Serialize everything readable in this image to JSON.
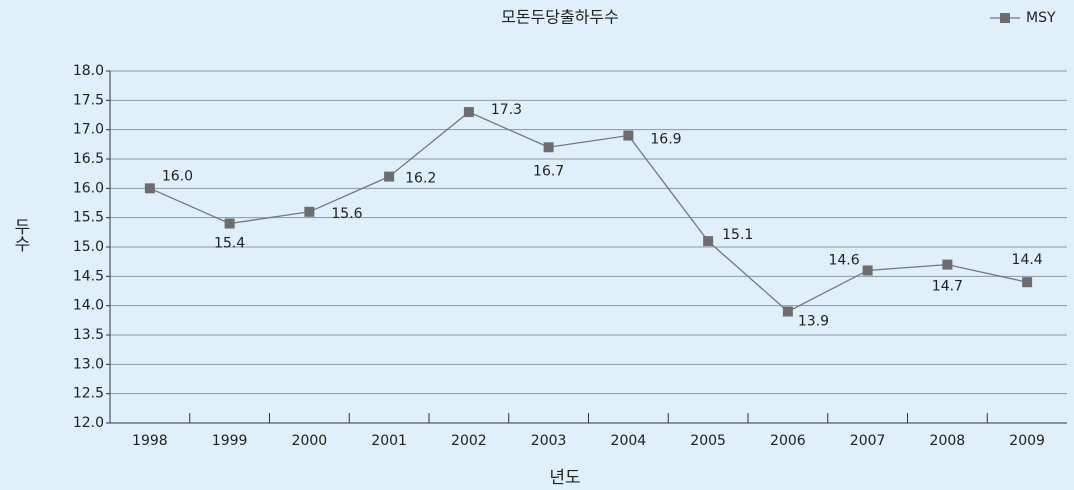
{
  "chart_data": {
    "type": "line",
    "title": "모돈두당출하두수",
    "x_label": "년도",
    "y_label": "두수",
    "categories": [
      "1998",
      "1999",
      "2000",
      "2001",
      "2002",
      "2003",
      "2004",
      "2005",
      "2006",
      "2007",
      "2008",
      "2009"
    ],
    "series": [
      {
        "name": "MSY",
        "color": "#6d6d6d",
        "values": [
          16.0,
          15.4,
          15.6,
          16.2,
          17.3,
          16.7,
          16.9,
          15.1,
          13.9,
          14.6,
          14.7,
          14.4
        ],
        "value_labels": [
          "16.0",
          "15.4",
          "15.6",
          "16.2",
          "17.3",
          "16.7",
          "16.9",
          "15.1",
          "13.9",
          "14.6",
          "14.7",
          "14.4"
        ]
      }
    ],
    "ylim": [
      12,
      18
    ],
    "yticks": [
      {
        "value": 12,
        "label": "12.0"
      },
      {
        "value": 12.5,
        "label": "12.5"
      },
      {
        "value": 13,
        "label": "13.0"
      },
      {
        "value": 13.5,
        "label": "13.5"
      },
      {
        "value": 14,
        "label": "14.0"
      },
      {
        "value": 14.5,
        "label": "14.5"
      },
      {
        "value": 15,
        "label": "15.0"
      },
      {
        "value": 15.5,
        "label": "15.5"
      },
      {
        "value": 16,
        "label": "16.0"
      },
      {
        "value": 16.5,
        "label": "16.5"
      },
      {
        "value": 17,
        "label": "17.0"
      },
      {
        "value": 17.5,
        "label": "17.5"
      },
      {
        "value": 18,
        "label": "18.0"
      }
    ],
    "grid": true,
    "legend": "top-right"
  }
}
